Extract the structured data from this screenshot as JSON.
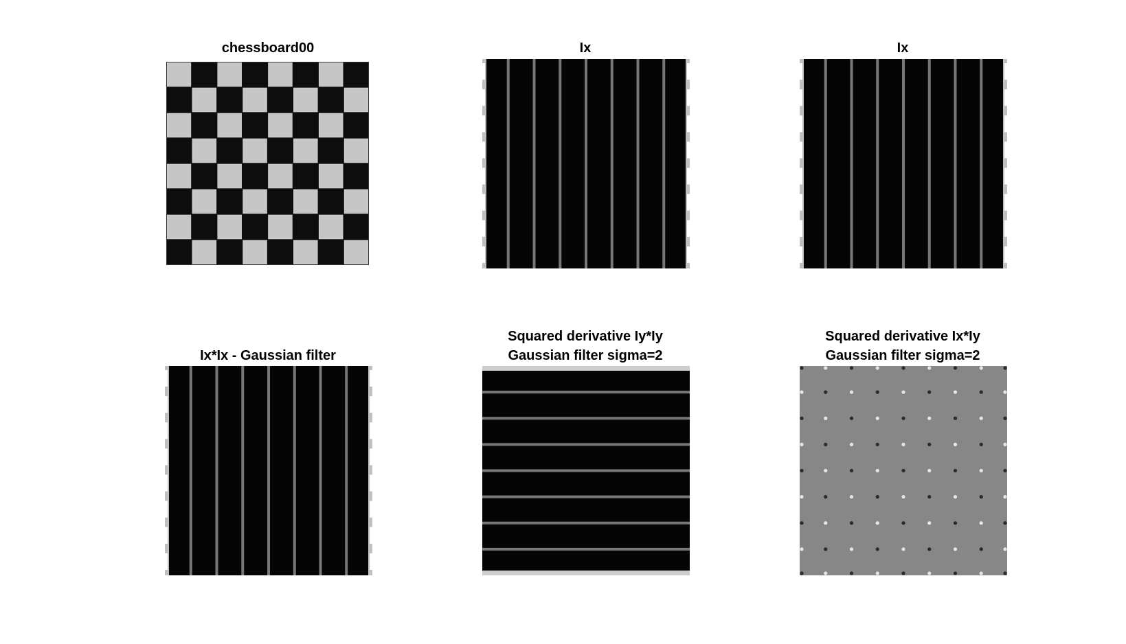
{
  "figure": {
    "panels": [
      {
        "title_lines": [
          "chessboard00"
        ],
        "content": "chessboard"
      },
      {
        "title_lines": [
          "Ix"
        ],
        "content": "vertical-lines"
      },
      {
        "title_lines": [
          "Ix"
        ],
        "content": "vertical-lines"
      },
      {
        "title_lines": [
          "Ix*Ix - Gaussian filter"
        ],
        "content": "vertical-lines"
      },
      {
        "title_lines": [
          "Squared derivative Iy*Iy",
          "Gaussian filter sigma=2"
        ],
        "content": "horizontal-lines"
      },
      {
        "title_lines": [
          "Squared derivative Ix*Iy",
          "Gaussian filter sigma=2"
        ],
        "content": "gray-dots"
      }
    ]
  },
  "colors": {
    "background": "#ffffff",
    "chess_light": "#c6c6c6",
    "chess_dark": "#0d0d0d",
    "filter_bg": "#050505",
    "filter_line": "#8c8c8c",
    "filter_edge": "#ffffff",
    "ixiy_bg": "#878787"
  }
}
